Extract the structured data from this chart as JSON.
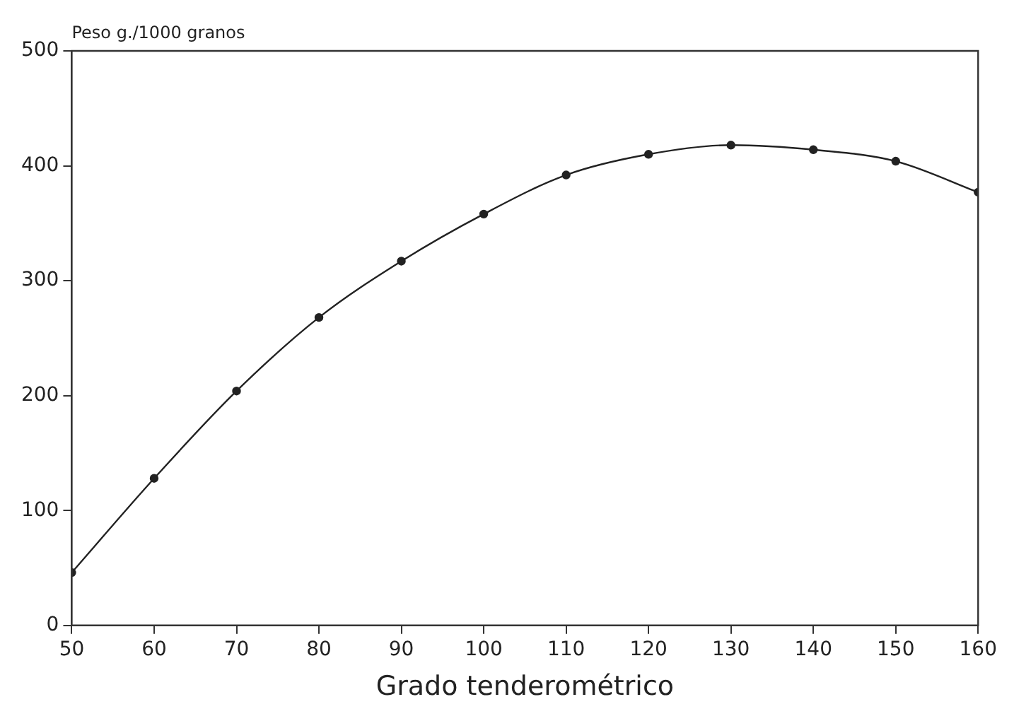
{
  "chart_data": {
    "type": "line",
    "xlabel": "Grado tenderométrico",
    "ylabel": "Peso g./1000 granos",
    "x": [
      50,
      60,
      70,
      80,
      90,
      100,
      110,
      120,
      130,
      140,
      150,
      160
    ],
    "series": [
      {
        "color": "#222222",
        "values": [
          46,
          128,
          204,
          268,
          317,
          358,
          392,
          410,
          418,
          414,
          404,
          377
        ]
      }
    ],
    "xlim": [
      50,
      160
    ],
    "xticks": [
      50,
      60,
      70,
      80,
      90,
      100,
      110,
      120,
      130,
      140,
      150,
      160
    ],
    "ylim": [
      0,
      500
    ],
    "yticks": [
      0,
      100,
      200,
      300,
      400,
      500
    ],
    "grid": false,
    "legend": false,
    "marker": "circle",
    "line_style": "solid"
  }
}
